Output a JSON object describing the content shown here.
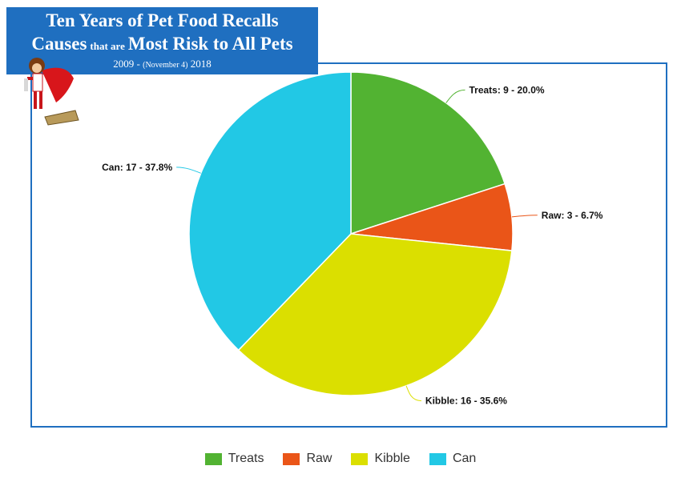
{
  "title": {
    "line1": "Ten Years of Pet Food Recalls",
    "line2_part1": "Causes",
    "line2_part2": "that are",
    "line2_part3": "Most Risk to All Pets",
    "line3_part1": "2009 -",
    "line3_part2": "(November 4)",
    "line3_part3": "2018"
  },
  "chart_data": {
    "type": "pie",
    "title": "Ten Years of Pet Food Recalls Causes that are Most Risk to All Pets",
    "subtitle": "2009 - (November 4) 2018",
    "slices": [
      {
        "name": "Treats",
        "value": 9,
        "percent": 20.0,
        "label": "Treats: 9 - 20.0%",
        "color": "#52b332"
      },
      {
        "name": "Raw",
        "value": 3,
        "percent": 6.7,
        "label": "Raw: 3 - 6.7%",
        "color": "#ea5518"
      },
      {
        "name": "Kibble",
        "value": 16,
        "percent": 35.6,
        "label": "Kibble: 16 - 35.6%",
        "color": "#dbdf00"
      },
      {
        "name": "Can",
        "value": 17,
        "percent": 37.8,
        "label": "Can: 17  - 37.8%",
        "color": "#22c8e5"
      }
    ],
    "legend_position": "bottom"
  }
}
